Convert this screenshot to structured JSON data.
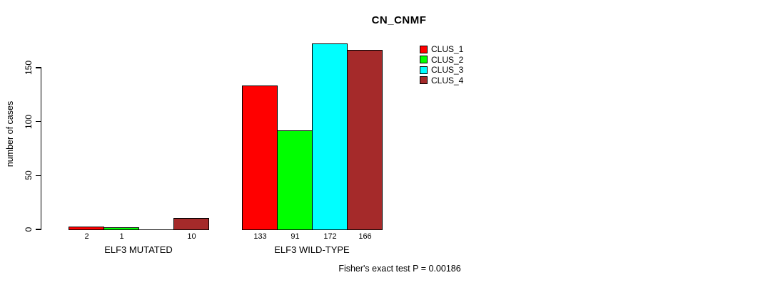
{
  "chart_data": {
    "type": "bar",
    "title": "CN_CNMF",
    "ylabel": "number of cases",
    "yticks": [
      0,
      50,
      100,
      150
    ],
    "ylim": [
      0,
      175
    ],
    "grid": false,
    "legend_position": "top-right",
    "series": [
      {
        "name": "CLUS_1",
        "color": "#ff0000"
      },
      {
        "name": "CLUS_2",
        "color": "#00ff00"
      },
      {
        "name": "CLUS_3",
        "color": "#00ffff"
      },
      {
        "name": "CLUS_4",
        "color": "#a52a2a"
      }
    ],
    "groups": [
      {
        "label": "ELF3 MUTATED",
        "values": [
          2,
          1,
          0,
          10
        ],
        "value_labels": [
          "2",
          "1",
          "",
          "10"
        ]
      },
      {
        "label": "ELF3 WILD-TYPE",
        "values": [
          133,
          91,
          172,
          166
        ],
        "value_labels": [
          "133",
          "91",
          "172",
          "166"
        ]
      }
    ],
    "annotation": "Fisher's exact test P = 0.00186"
  }
}
